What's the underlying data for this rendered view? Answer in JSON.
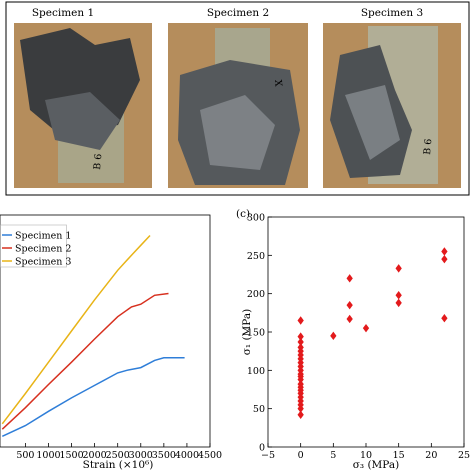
{
  "figure": {
    "photos": {
      "specimen_labels": [
        "Specimen 1",
        "Specimen 2",
        "Specimen 3"
      ],
      "specimen_marks": [
        "B 6",
        "X",
        "B 6"
      ]
    },
    "panel_c_label": "(c)"
  },
  "chart_data": [
    {
      "type": "line",
      "title": "",
      "xlabel": "Strain (×10⁶)",
      "ylabel": "",
      "xlim": [
        0,
        4500
      ],
      "ylim": [
        0,
        260
      ],
      "x_ticks": [
        "500",
        "1000",
        "1500",
        "2000",
        "2500",
        "3000",
        "3500",
        "4000",
        "4500"
      ],
      "x_tick_values": [
        500,
        1000,
        1500,
        2000,
        2500,
        3000,
        3500,
        4000,
        4500
      ],
      "grid": false,
      "legend": "top-left",
      "series": [
        {
          "name": "Specimen 1",
          "color": "#2f7ed8",
          "points": [
            [
              0,
              12
            ],
            [
              500,
              24
            ],
            [
              1000,
              40
            ],
            [
              1500,
              55
            ],
            [
              2000,
              69
            ],
            [
              2500,
              83
            ],
            [
              2700,
              86
            ],
            [
              3000,
              89
            ],
            [
              3300,
              97
            ],
            [
              3500,
              100
            ],
            [
              3950,
              100
            ]
          ]
        },
        {
          "name": "Specimen 2",
          "color": "#d7301f",
          "points": [
            [
              0,
              20
            ],
            [
              500,
              44
            ],
            [
              1000,
              70
            ],
            [
              1500,
              95
            ],
            [
              2000,
              121
            ],
            [
              2500,
              146
            ],
            [
              2800,
              157
            ],
            [
              3000,
              160
            ],
            [
              3300,
              170
            ],
            [
              3600,
              172
            ]
          ]
        },
        {
          "name": "Specimen 3",
          "color": "#e8b417",
          "points": [
            [
              0,
              26
            ],
            [
              500,
              60
            ],
            [
              1000,
              95
            ],
            [
              1500,
              130
            ],
            [
              2000,
              165
            ],
            [
              2500,
              198
            ],
            [
              2800,
              215
            ],
            [
              3000,
              226
            ],
            [
              3200,
              237
            ]
          ]
        }
      ]
    },
    {
      "type": "scatter",
      "title": "",
      "xlabel": "σ₃ (MPa)",
      "ylabel": "σ₁ (MPa)",
      "xlim": [
        -5,
        25
      ],
      "ylim": [
        0,
        300
      ],
      "x_ticks": [
        "−5",
        "0",
        "5",
        "10",
        "15",
        "20",
        "25"
      ],
      "x_tick_values": [
        -5,
        0,
        5,
        10,
        15,
        20,
        25
      ],
      "y_ticks": [
        "0",
        "50",
        "100",
        "150",
        "200",
        "250",
        "300"
      ],
      "y_tick_values": [
        0,
        50,
        100,
        150,
        200,
        250,
        300
      ],
      "grid": false,
      "color": "#e31a1c",
      "marker": "diamond",
      "points": [
        [
          0,
          42
        ],
        [
          0,
          50
        ],
        [
          0,
          55
        ],
        [
          0,
          60
        ],
        [
          0,
          65
        ],
        [
          0,
          70
        ],
        [
          0,
          74
        ],
        [
          0,
          78
        ],
        [
          0,
          82
        ],
        [
          0,
          88
        ],
        [
          0,
          92
        ],
        [
          0,
          95
        ],
        [
          0,
          100
        ],
        [
          0,
          105
        ],
        [
          0,
          110
        ],
        [
          0,
          115
        ],
        [
          0,
          120
        ],
        [
          0,
          125
        ],
        [
          0,
          130
        ],
        [
          0,
          137
        ],
        [
          0,
          144
        ],
        [
          0,
          165
        ],
        [
          5,
          145
        ],
        [
          7.5,
          167
        ],
        [
          7.5,
          185
        ],
        [
          7.5,
          220
        ],
        [
          10,
          155
        ],
        [
          15,
          188
        ],
        [
          15,
          198
        ],
        [
          15,
          233
        ],
        [
          22,
          168
        ],
        [
          22,
          245
        ],
        [
          22,
          255
        ]
      ]
    }
  ]
}
